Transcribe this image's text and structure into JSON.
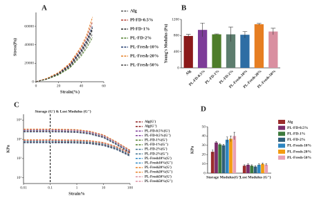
{
  "chart_data": [
    {
      "type": "line",
      "label": "A",
      "x_label": "Strain(%)",
      "y_label": "Stress(Pa)",
      "x": [
        0,
        10,
        20,
        30,
        40,
        45,
        50
      ],
      "xlim": [
        0,
        60
      ],
      "xticks": [
        0,
        20,
        40,
        60
      ],
      "ylim": [
        0,
        75000
      ],
      "yticks": [
        0,
        20000,
        40000,
        60000
      ],
      "series": [
        {
          "name": "Alg",
          "color": "#555555",
          "values": [
            0,
            3000,
            8000,
            16000,
            30000,
            40000,
            52000
          ]
        },
        {
          "name": "Pl-FD-0.5%",
          "color": "#b03a2e",
          "values": [
            0,
            3500,
            9500,
            19000,
            36000,
            48000,
            65000
          ]
        },
        {
          "name": "Pl-FD-1%",
          "color": "#222222",
          "values": [
            0,
            3200,
            8800,
            17500,
            33000,
            44000,
            58000
          ]
        },
        {
          "name": "PL-FD-2%",
          "color": "#4e7d2a",
          "values": [
            0,
            2800,
            7500,
            15000,
            28000,
            37000,
            48000
          ]
        },
        {
          "name": "PL-Fresh-10%",
          "color": "#1f3a6e",
          "values": [
            0,
            3300,
            9000,
            18000,
            34000,
            45000,
            60000
          ]
        },
        {
          "name": "PL-Fresh-20%",
          "color": "#e67e22",
          "values": [
            0,
            3800,
            10000,
            20000,
            38000,
            51000,
            70000
          ]
        },
        {
          "name": "PL-Fresh-50%",
          "color": "#444444",
          "values": [
            0,
            3100,
            8500,
            17000,
            32000,
            42000,
            56000
          ]
        }
      ]
    },
    {
      "type": "bar",
      "label": "B",
      "y_label": "Young's Modulus (Pa)",
      "categories": [
        "Alg",
        "PL-FD-0.5%",
        "PL-FD-1%",
        "PL-FD-2%",
        "PL-Fresh-10%",
        "PL-Fresh-20%",
        "PL-Fresh-50%"
      ],
      "values": [
        790,
        940,
        830,
        830,
        820,
        1080,
        900
      ],
      "errors": [
        40,
        170,
        10,
        180,
        80,
        20,
        80
      ],
      "colors": [
        "#8b1a1a",
        "#7d3c98",
        "#4e7d2a",
        "#5d7d6e",
        "#2e6da4",
        "#e67e22",
        "#d98fa0"
      ],
      "ylim": [
        0,
        1200
      ],
      "yticks": [
        0,
        400,
        800,
        1200
      ]
    },
    {
      "type": "line",
      "label": "C",
      "x_label": "Strain%",
      "y_label": "KPa",
      "annotation": "Storage (G') & Lost Modulus (G'')",
      "xlog": true,
      "ylog": true,
      "marker_x": 0.1,
      "x": [
        0.01,
        0.03,
        0.1,
        0.3,
        1,
        3,
        10,
        30,
        100
      ],
      "xlim": [
        0.01,
        100
      ],
      "xticks": [
        0.01,
        0.1,
        1,
        10,
        100
      ],
      "ylim": [
        5,
        20000
      ],
      "yticks": [
        {
          "value": 10,
          "label": "10¹"
        },
        {
          "value": 100,
          "label": "10²"
        },
        {
          "value": 1000,
          "label": "10³"
        },
        {
          "value": 10000,
          "label": "10⁴"
        }
      ],
      "series": [
        {
          "name": "Alg(G')",
          "color": "#8b1a1a",
          "values": [
            2600,
            2600,
            2600,
            2548,
            2418,
            2028,
            1300,
            572,
            208
          ]
        },
        {
          "name": "Alg(G'')",
          "color": "#8b1a1a",
          "values": [
            700,
            700,
            700,
            693,
            679,
            630,
            504,
            315,
            140
          ]
        },
        {
          "name": "PL-FD-0.5%(G')",
          "color": "#7d3c98",
          "values": [
            3200,
            3200,
            3200,
            3136,
            2976,
            2496,
            1600,
            704,
            256
          ]
        },
        {
          "name": "PL-FD-0.5%(G'')",
          "color": "#7d3c98",
          "values": [
            900,
            900,
            900,
            891,
            873,
            810,
            648,
            405,
            180
          ]
        },
        {
          "name": "PL-FD-1%(G')",
          "color": "#4e7d2a",
          "values": [
            2900,
            2900,
            2900,
            2842,
            2697,
            2262,
            1450,
            638,
            232
          ]
        },
        {
          "name": "PL-FD-1%(G'')",
          "color": "#4e7d2a",
          "values": [
            800,
            800,
            800,
            792,
            776,
            720,
            576,
            360,
            160
          ]
        },
        {
          "name": "PL-FD-2%(G')",
          "color": "#3d6f8f",
          "values": [
            2400,
            2400,
            2400,
            2352,
            2232,
            1872,
            1200,
            528,
            192
          ]
        },
        {
          "name": "PL-FD-2%(G'')",
          "color": "#3d6f8f",
          "values": [
            650,
            650,
            650,
            644,
            631,
            585,
            468,
            293,
            130
          ]
        },
        {
          "name": "PL-Fresh10%(G')",
          "color": "#2e86c1",
          "values": [
            2800,
            2800,
            2800,
            2744,
            2604,
            2184,
            1400,
            616,
            224
          ]
        },
        {
          "name": "PL-Fresh10%(G'')",
          "color": "#2e86c1",
          "values": [
            750,
            750,
            750,
            743,
            728,
            675,
            540,
            338,
            150
          ]
        },
        {
          "name": "PL-Fresh20%(G')",
          "color": "#e67e22",
          "values": [
            3400,
            3400,
            3400,
            3332,
            3162,
            2652,
            1700,
            748,
            272
          ]
        },
        {
          "name": "PL-Fresh20%(G'')",
          "color": "#e67e22",
          "values": [
            950,
            950,
            950,
            941,
            922,
            855,
            684,
            428,
            190
          ]
        },
        {
          "name": "PL-Fresh50%(G')",
          "color": "#d98fa0",
          "values": [
            3000,
            3000,
            3000,
            2940,
            2790,
            2340,
            1500,
            660,
            240
          ]
        },
        {
          "name": "PL-Fresh50%(G'')",
          "color": "#d98fa0",
          "values": [
            850,
            850,
            850,
            842,
            825,
            765,
            612,
            383,
            170
          ]
        }
      ]
    },
    {
      "type": "bar",
      "label": "D",
      "y_label": "KPa",
      "categories": [
        "Storage Modulus(G')",
        "Lost Modulus (G'')"
      ],
      "ylim": [
        0,
        50
      ],
      "yticks": [
        0,
        10,
        20,
        30,
        40,
        50
      ],
      "series": [
        {
          "name": "Alg",
          "color": "#9b2c2c",
          "values": [
            23,
            8
          ],
          "errors": [
            2,
            1
          ]
        },
        {
          "name": "PL-FD-0.5%",
          "color": "#7b2d6b",
          "values": [
            33,
            9
          ],
          "errors": [
            1,
            1
          ]
        },
        {
          "name": "PL-FD-1%",
          "color": "#3d7a3d",
          "values": [
            31,
            8
          ],
          "errors": [
            1,
            1
          ]
        },
        {
          "name": "PL-FD-2%",
          "color": "#2f5f7a",
          "values": [
            30,
            7
          ],
          "errors": [
            1,
            1
          ]
        },
        {
          "name": "PL-Fresh-10%",
          "color": "#2e86c1",
          "values": [
            36,
            9
          ],
          "errors": [
            3,
            1
          ]
        },
        {
          "name": "PL-Fresh-20%",
          "color": "#f39c12",
          "values": [
            37,
            10
          ],
          "errors": [
            3,
            1
          ]
        },
        {
          "name": "PL-Fresh-50%",
          "color": "#e8a0b4",
          "values": [
            40,
            9
          ],
          "errors": [
            4,
            1
          ]
        }
      ]
    }
  ]
}
